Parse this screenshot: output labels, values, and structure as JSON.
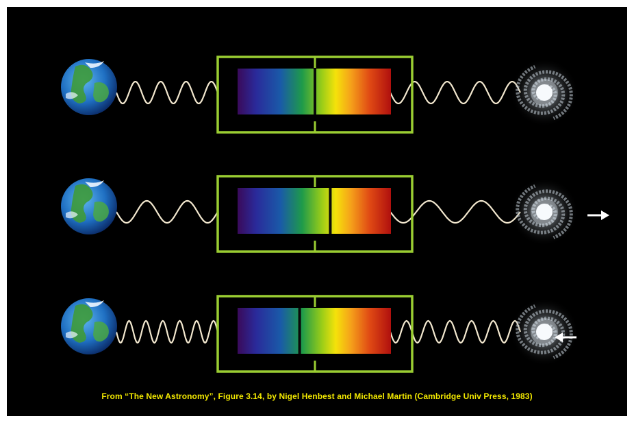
{
  "figure": {
    "caption": "From “The New Astronomy”, Figure 3.14, by Nigel Henbest and Michael Martin (Cambridge Univ Press, 1983)",
    "caption_color": "#f2e800",
    "frame_color": "#9acd32",
    "background": "#000000",
    "rows": [
      {
        "id": "stationary",
        "galaxy_motion": "none",
        "spectral_line_shift": 0,
        "wave_cycles_left": 4,
        "wave_cycles_right": 4,
        "arrow": "none"
      },
      {
        "id": "receding",
        "galaxy_motion": "away",
        "spectral_line_shift": 0.1,
        "wave_cycles_left": 2.5,
        "wave_cycles_right": 2.5,
        "arrow": "right"
      },
      {
        "id": "approaching",
        "galaxy_motion": "toward",
        "spectral_line_shift": -0.1,
        "wave_cycles_left": 6,
        "wave_cycles_right": 6,
        "arrow": "left"
      }
    ],
    "icons": {
      "observer": "earth-icon",
      "source": "spiral-galaxy-icon"
    }
  }
}
